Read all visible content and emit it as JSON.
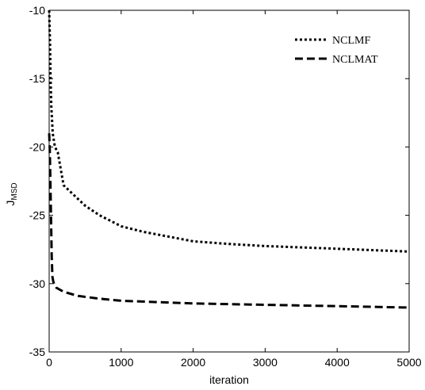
{
  "chart_data": {
    "type": "line",
    "title": "",
    "xlabel": "iteration",
    "ylabel": "J",
    "ylabel_subscript": "MSD",
    "xlim": [
      0,
      5000
    ],
    "ylim": [
      -35,
      -10
    ],
    "xticks": [
      0,
      1000,
      2000,
      3000,
      4000,
      5000
    ],
    "yticks": [
      -35,
      -30,
      -25,
      -20,
      -15,
      -10
    ],
    "xtick_labels": [
      "0",
      "1000",
      "2000",
      "3000",
      "4000",
      "5000"
    ],
    "ytick_labels": [
      "-35",
      "-30",
      "-25",
      "-20",
      "-15",
      "-10"
    ],
    "grid": false,
    "legend_position": "top-right",
    "series": [
      {
        "name": "NCLMF",
        "style": "dotted",
        "color": "#000000",
        "x": [
          0,
          10,
          20,
          30,
          50,
          80,
          120,
          200,
          300,
          500,
          700,
          1000,
          1300,
          1600,
          2000,
          2500,
          3000,
          3500,
          4000,
          4500,
          5000
        ],
        "y": [
          -10,
          -12,
          -15,
          -17,
          -19,
          -20,
          -20.4,
          -22.8,
          -23.3,
          -24.3,
          -25.0,
          -25.8,
          -26.2,
          -26.5,
          -26.9,
          -27.1,
          -27.25,
          -27.35,
          -27.45,
          -27.55,
          -27.65
        ]
      },
      {
        "name": "NCLMAT",
        "style": "dashed",
        "color": "#000000",
        "x": [
          0,
          8,
          15,
          25,
          35,
          45,
          60,
          100,
          200,
          400,
          700,
          1000,
          1500,
          2000,
          2500,
          3000,
          3500,
          4000,
          4500,
          5000
        ],
        "y": [
          -19,
          -20,
          -22,
          -25,
          -28,
          -29.5,
          -29.9,
          -30.3,
          -30.6,
          -30.9,
          -31.1,
          -31.25,
          -31.35,
          -31.45,
          -31.5,
          -31.55,
          -31.6,
          -31.65,
          -31.7,
          -31.75
        ]
      }
    ]
  }
}
